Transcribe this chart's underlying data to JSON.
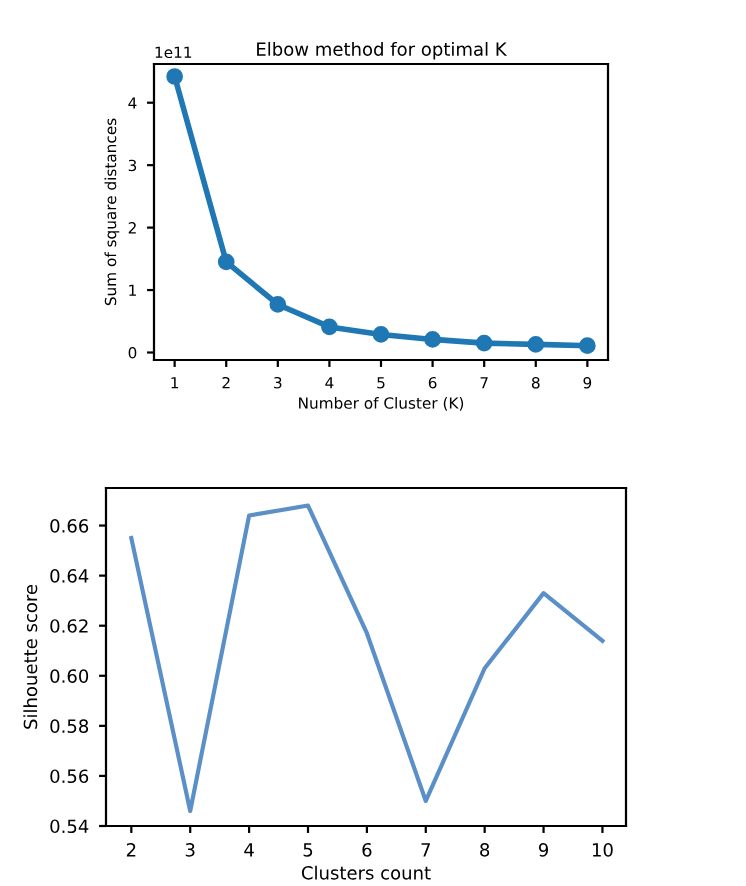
{
  "chart_data": [
    {
      "type": "line",
      "title": "Elbow method for optimal K",
      "xlabel": "Number of Cluster (K)",
      "ylabel": "Sum of square distances",
      "x": [
        1,
        2,
        3,
        4,
        5,
        6,
        7,
        8,
        9
      ],
      "series": [
        {
          "color": "#1f77b4",
          "values": [
            4.42,
            1.45,
            0.77,
            0.41,
            0.29,
            0.21,
            0.15,
            0.13,
            0.11
          ]
        }
      ],
      "marker": "circle",
      "xlim": [
        0.6,
        9.4
      ],
      "xticks": [
        1,
        2,
        3,
        4,
        5,
        6,
        7,
        8,
        9
      ],
      "ylim": [
        -0.12,
        4.62
      ],
      "yticks": [
        0,
        1,
        2,
        3,
        4
      ],
      "annotations": [
        "1e11"
      ]
    },
    {
      "type": "line",
      "xlabel": "Clusters count",
      "ylabel": "Silhouette score",
      "x": [
        2,
        3,
        4,
        5,
        6,
        7,
        8,
        9,
        10
      ],
      "series": [
        {
          "color": "#5b8fc7",
          "values": [
            0.655,
            0.546,
            0.664,
            0.668,
            0.617,
            0.55,
            0.603,
            0.633,
            0.614
          ]
        }
      ],
      "xlim": [
        1.57,
        10.4
      ],
      "xticks": [
        2,
        3,
        4,
        5,
        6,
        7,
        8,
        9,
        10
      ],
      "ylim": [
        0.54,
        0.675
      ],
      "yticks": [
        {
          "value": 0.54,
          "label": "0.54"
        },
        {
          "value": 0.56,
          "label": "0.56"
        },
        {
          "value": 0.58,
          "label": "0.58"
        },
        {
          "value": 0.6,
          "label": "0.60"
        },
        {
          "value": 0.62,
          "label": "0.62"
        },
        {
          "value": 0.64,
          "label": "0.64"
        },
        {
          "value": 0.66,
          "label": "0.66"
        }
      ]
    }
  ]
}
